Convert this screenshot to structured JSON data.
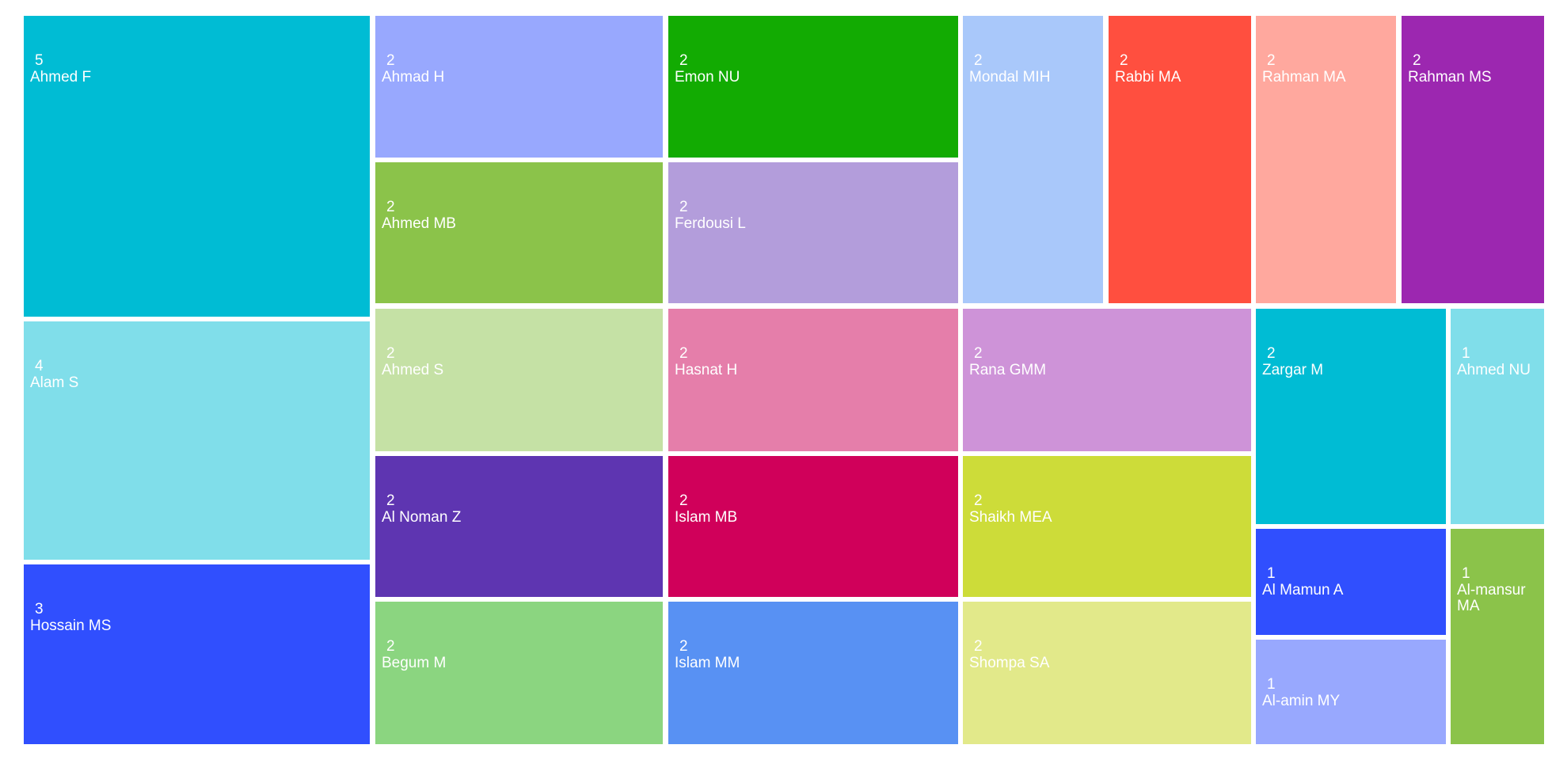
{
  "chart_data": {
    "type": "treemap",
    "items": [
      {
        "name": "Ahmed F",
        "value": 5,
        "color": "#00BCD4"
      },
      {
        "name": "Alam S",
        "value": 4,
        "color": "#80DEEA"
      },
      {
        "name": "Hossain MS",
        "value": 3,
        "color": "#304FFE"
      },
      {
        "name": "Ahmad H",
        "value": 2,
        "color": "#98A8FE"
      },
      {
        "name": "Ahmed MB",
        "value": 2,
        "color": "#8BC34A"
      },
      {
        "name": "Ahmed S",
        "value": 2,
        "color": "#C5E1A5"
      },
      {
        "name": "Al Noman Z",
        "value": 2,
        "color": "#5E35B1"
      },
      {
        "name": "Begum M",
        "value": 2,
        "color": "#8BD580"
      },
      {
        "name": "Emon NU",
        "value": 2,
        "color": "#12AB02"
      },
      {
        "name": "Ferdousi L",
        "value": 2,
        "color": "#B39DDB"
      },
      {
        "name": "Hasnat H",
        "value": 2,
        "color": "#E57EAA"
      },
      {
        "name": "Islam MB",
        "value": 2,
        "color": "#D0005A"
      },
      {
        "name": "Islam MM",
        "value": 2,
        "color": "#5891F3"
      },
      {
        "name": "Mondal MIH",
        "value": 2,
        "color": "#A9C8FA"
      },
      {
        "name": "Rabbi MA",
        "value": 2,
        "color": "#FF4F3F"
      },
      {
        "name": "Rahman MA",
        "value": 2,
        "color": "#FFA89E"
      },
      {
        "name": "Rahman MS",
        "value": 2,
        "color": "#9C27B0"
      },
      {
        "name": "Rana GMM",
        "value": 2,
        "color": "#CE93D8"
      },
      {
        "name": "Shaikh MEA",
        "value": 2,
        "color": "#CDDC39"
      },
      {
        "name": "Shompa SA",
        "value": 2,
        "color": "#E2E98A"
      },
      {
        "name": "Zargar M",
        "value": 2,
        "color": "#00BCD4"
      },
      {
        "name": "Ahmed NU",
        "value": 1,
        "color": "#80DEEA"
      },
      {
        "name": "Al Mamun A",
        "value": 1,
        "color": "#304FFE"
      },
      {
        "name": "Al-amin MY",
        "value": 1,
        "color": "#98A8FE"
      },
      {
        "name": "Al-mansur MA",
        "value": 1,
        "color": "#8BC34A"
      }
    ]
  }
}
